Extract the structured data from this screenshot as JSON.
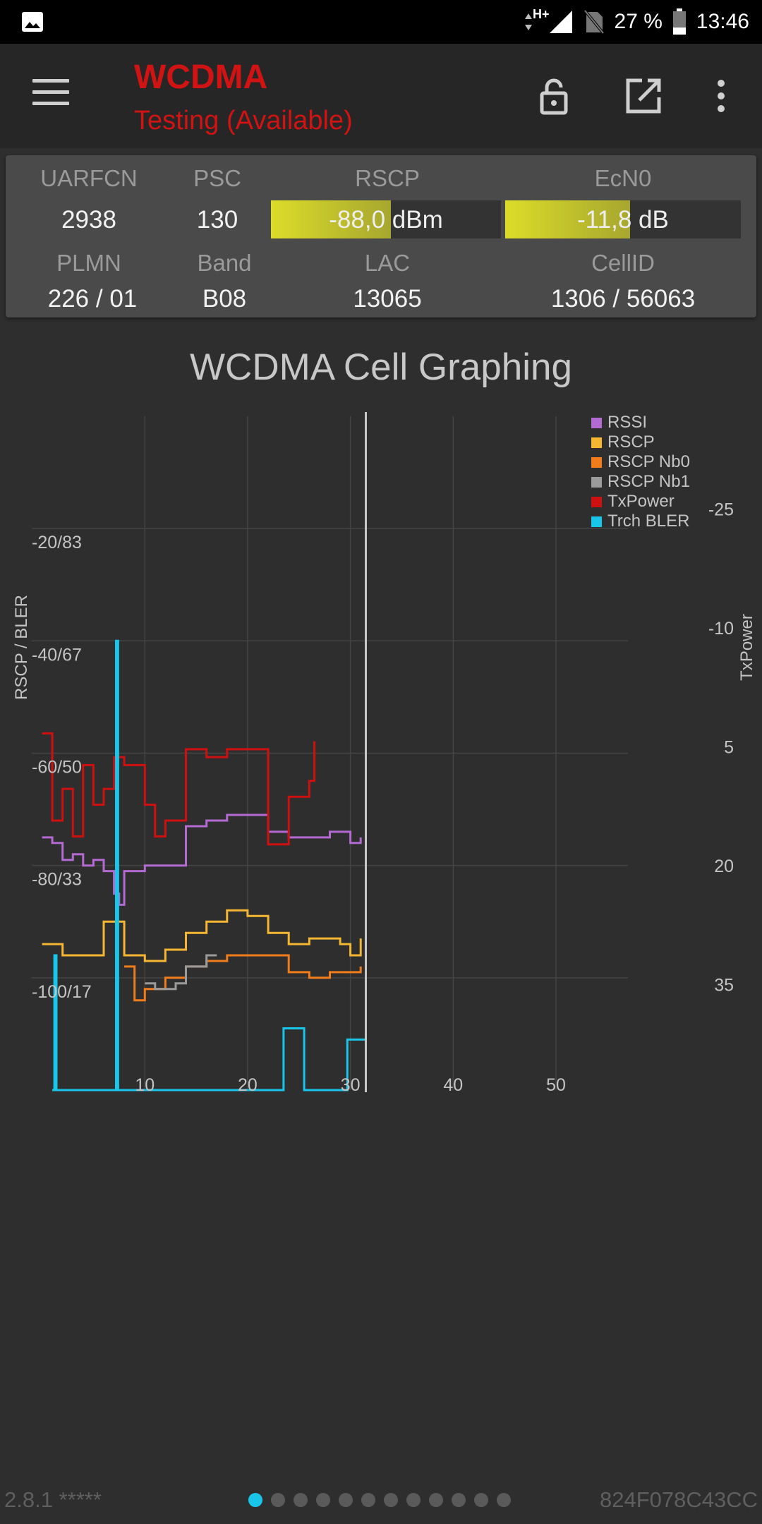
{
  "status_bar": {
    "network": "H+",
    "battery": "27 %",
    "time": "13:46",
    "icons": [
      "image-icon",
      "data-arrows-icon",
      "signal-icon",
      "no-sim-icon",
      "battery-icon"
    ]
  },
  "toolbar": {
    "title": "WCDMA",
    "subtitle": "Testing (Available)",
    "icons": [
      "menu-icon",
      "lock-icon",
      "open-external-icon",
      "more-vert-icon"
    ]
  },
  "cell_info": {
    "uarfcn_label": "UARFCN",
    "uarfcn": "2938",
    "psc_label": "PSC",
    "psc": "130",
    "rscp_label": "RSCP",
    "rscp": "-88,0 dBm",
    "rscp_fill": 0.52,
    "ecn0_label": "EcN0",
    "ecn0": "-11,8 dB",
    "ecn0_fill": 0.53,
    "plmn_label": "PLMN",
    "plmn": "226 / 01",
    "band_label": "Band",
    "band": "B08",
    "lac_label": "LAC",
    "lac": "13065",
    "cellid_label": "CellID",
    "cellid": "1306 / 56063"
  },
  "chart_title": "WCDMA Cell Graphing",
  "chart_data": {
    "type": "line",
    "title": "WCDMA Cell Graphing",
    "x_ticks": [
      10,
      20,
      30,
      40,
      50
    ],
    "xlim": [
      -1,
      57
    ],
    "current_x": 31.5,
    "y_left_label": "RSCP / BLER",
    "y_left_ticks": [
      "-20/83",
      "-40/67",
      "-60/50",
      "-80/33",
      "-100/17"
    ],
    "y_left_tick_values": [
      -20,
      -40,
      -60,
      -80,
      -100
    ],
    "ylim_left": [
      -120,
      0
    ],
    "y_right_label": "TxPower",
    "y_right_ticks": [
      "-25",
      "-10",
      "5",
      "20",
      "35"
    ],
    "y_right_tick_values": [
      -25,
      -10,
      5,
      20,
      35
    ],
    "ylim_right": [
      -35,
      50
    ],
    "legend_position": "top-right",
    "series": [
      {
        "name": "RSSI",
        "color": "#b36ad1",
        "axis": "left",
        "x": [
          0,
          1,
          2,
          3,
          4,
          5,
          6,
          7,
          7.5,
          8,
          10,
          12,
          14,
          16,
          18,
          20,
          22,
          24,
          26,
          28,
          30,
          31
        ],
        "y": [
          -75,
          -76,
          -79,
          -78,
          -80,
          -79,
          -81,
          -85,
          -87,
          -81,
          -80,
          -80,
          -73,
          -72,
          -71,
          -71,
          -74,
          -75,
          -75,
          -74,
          -76,
          -75
        ]
      },
      {
        "name": "RSCP",
        "color": "#f5b731",
        "axis": "left",
        "x": [
          0,
          2,
          4,
          6,
          8,
          10,
          12,
          14,
          16,
          18,
          20,
          22,
          24,
          26,
          28,
          29,
          30,
          31
        ],
        "y": [
          -94,
          -96,
          -96,
          -90,
          -96,
          -97,
          -95,
          -92,
          -90,
          -88,
          -89,
          -92,
          -94,
          -93,
          -93,
          -94,
          -96,
          -93
        ]
      },
      {
        "name": "RSCP Nb0",
        "color": "#f07c1a",
        "axis": "left",
        "x": [
          8,
          9,
          10,
          12,
          14,
          16,
          18,
          20,
          24,
          26,
          28,
          30,
          31
        ],
        "y": [
          -98,
          -104,
          -102,
          -100,
          -98,
          -97,
          -96,
          -96,
          -99,
          -100,
          -99,
          -99,
          -98
        ]
      },
      {
        "name": "RSCP Nb1",
        "color": "#9b9b9b",
        "axis": "left",
        "x": [
          10,
          11,
          12,
          13,
          14,
          16,
          17
        ],
        "y": [
          -101,
          -102,
          -102,
          -101,
          -98,
          -96,
          -96
        ]
      },
      {
        "name": "TxPower",
        "color": "#cf1010",
        "axis": "right",
        "x": [
          0,
          1,
          2,
          3,
          4,
          5,
          6,
          7,
          8,
          9,
          10,
          11,
          12,
          13,
          14,
          16,
          18,
          20,
          22,
          24,
          26,
          26.5
        ],
        "y": [
          5,
          16,
          12,
          18,
          9,
          14,
          12,
          8,
          9,
          9,
          14,
          18,
          16,
          16,
          7,
          8,
          7,
          7,
          19,
          13,
          11,
          6
        ]
      },
      {
        "name": "Trch BLER",
        "color": "#19c6ea",
        "axis": "left",
        "x": [
          1,
          1.2,
          1.4,
          7,
          7.2,
          7.4,
          13,
          21.5,
          23.5,
          25.5,
          29.5,
          29.7,
          31.5
        ],
        "y": [
          -120,
          -96,
          -120,
          -120,
          -40,
          -120,
          -120,
          -120,
          -109,
          -120,
          -120,
          -111,
          -111
        ]
      }
    ]
  },
  "footer": {
    "version": "2.8.1 *****",
    "device_id": "824F078C43CC",
    "page_count": 12,
    "active_page": 0
  }
}
